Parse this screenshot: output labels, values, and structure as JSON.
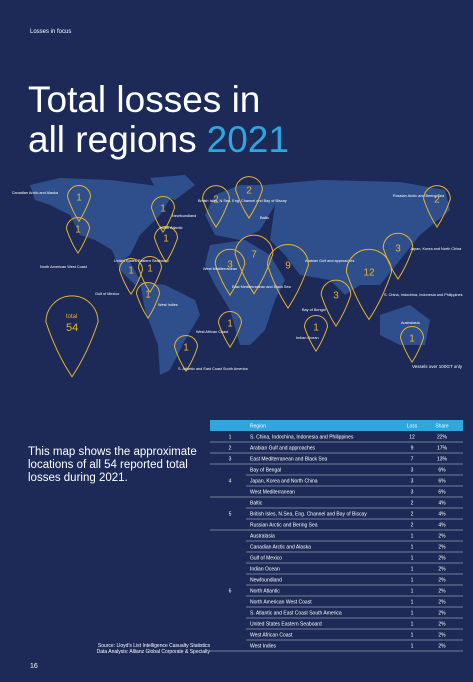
{
  "header": {
    "section": "Losses in focus"
  },
  "title": {
    "line1": "Total losses in",
    "line2": "all regions",
    "year": "2021"
  },
  "map": {
    "markers": [
      {
        "label": "Canadian Arctic and Alaska",
        "value": 1
      },
      {
        "label": "Newfoundland",
        "value": 1
      },
      {
        "label": "North American West Coast",
        "value": 1
      },
      {
        "label": "United States Eastern Seaboard",
        "value": 1
      },
      {
        "label": "North Atlantic",
        "value": 1
      },
      {
        "label": "Gulf of Mexico",
        "value": 1
      },
      {
        "label": "West Indies",
        "value": 1
      },
      {
        "label": "British Isles, N.Sea, Eng. Channel and Bay of Biscay",
        "value": 2
      },
      {
        "label": "Baltic",
        "value": 2
      },
      {
        "label": "West Mediterranean",
        "value": 3
      },
      {
        "label": "East Mediterranean and Black Sea",
        "value": 7
      },
      {
        "label": "Arabian Gulf and approaches",
        "value": 9
      },
      {
        "label": "Russian Arctic and Bering Sea",
        "value": 2
      },
      {
        "label": "Japan, Korea and North China",
        "value": 3
      },
      {
        "label": "S. China, Indochina, Indonesia and Philippines",
        "value": 12
      },
      {
        "label": "Bay of Bengal",
        "value": 3
      },
      {
        "label": "West African Coast",
        "value": 1
      },
      {
        "label": "Indian Ocean",
        "value": 1
      },
      {
        "label": "Australasia",
        "value": 1
      },
      {
        "label": "S. Atlantic and East Coast South America",
        "value": 1
      }
    ],
    "total": {
      "label": "total",
      "value": 54
    },
    "note": "Vessels over 100GT only"
  },
  "intro": "This map shows the approximate locations of all 54 reported total losses during 2021.",
  "table": {
    "headers": [
      "Region",
      "Loss",
      "Share"
    ],
    "groups": [
      {
        "rank": "1",
        "rows": [
          [
            "S. China, Indochina, Indonesia and Philippines",
            "12",
            "22%"
          ]
        ]
      },
      {
        "rank": "2",
        "rows": [
          [
            "Arabian Gulf and approaches",
            "9",
            "17%"
          ]
        ]
      },
      {
        "rank": "3",
        "rows": [
          [
            "East Mediterranean and Black Sea",
            "7",
            "13%"
          ]
        ]
      },
      {
        "rank": "4",
        "rows": [
          [
            "Bay of Bengal",
            "3",
            "6%"
          ],
          [
            "Japan, Korea and North China",
            "3",
            "6%"
          ],
          [
            "West Mediterranean",
            "3",
            "6%"
          ]
        ]
      },
      {
        "rank": "5",
        "rows": [
          [
            "Baltic",
            "2",
            "4%"
          ],
          [
            "British Isles, N.Sea, Eng. Channel and Bay of Biscay",
            "2",
            "4%"
          ],
          [
            "Russian Arctic and Bering Sea",
            "2",
            "4%"
          ]
        ]
      },
      {
        "rank": "6",
        "rows": [
          [
            "Australasia",
            "1",
            "2%"
          ],
          [
            "Canadian Arctic and Alaska",
            "1",
            "2%"
          ],
          [
            "Gulf of Mexico",
            "1",
            "2%"
          ],
          [
            "Indian Ocean",
            "1",
            "2%"
          ],
          [
            "Newfoundland",
            "1",
            "2%"
          ],
          [
            "North Atlantic",
            "1",
            "2%"
          ],
          [
            "North American West Coast",
            "1",
            "2%"
          ],
          [
            "S. Atlantic and East Coast South America",
            "1",
            "2%"
          ],
          [
            "United States Eastern Seaboard",
            "1",
            "2%"
          ],
          [
            "West African Coast",
            "1",
            "2%"
          ],
          [
            "West Indies",
            "1",
            "2%"
          ]
        ]
      }
    ]
  },
  "source": {
    "line1": "Source: Lloyd's List Intelligence Casualty Statistics",
    "line2": "Data Analysis: Allianz Global Corporate & Specialty"
  },
  "page_number": "16"
}
